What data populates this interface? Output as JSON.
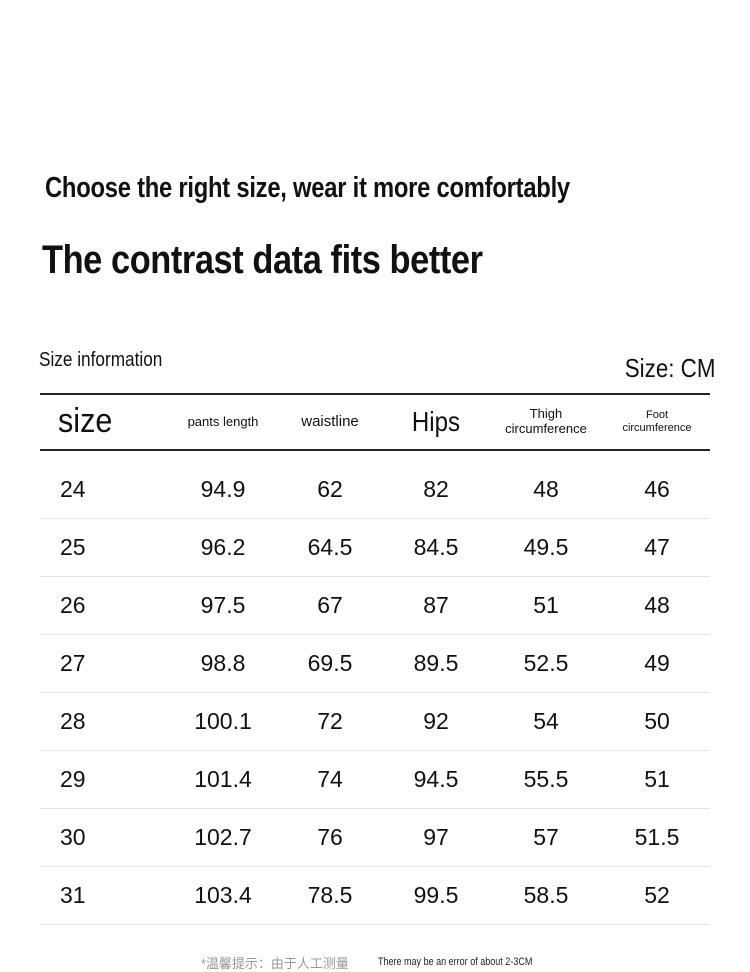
{
  "heading": {
    "line1": "Choose the right size, wear it more comfortably",
    "line2": "The contrast data fits better"
  },
  "table_meta": {
    "label": "Size information",
    "unit": "Size: CM"
  },
  "columns": {
    "size": "size",
    "pants_length": "pants length",
    "waistline": "waistline",
    "hips": "Hips",
    "thigh_line1": "Thigh",
    "thigh_line2": "circumference",
    "foot_line1": "Foot",
    "foot_line2": "circumference"
  },
  "rows": [
    [
      "24",
      "94.9",
      "62",
      "82",
      "48",
      "46"
    ],
    [
      "25",
      "96.2",
      "64.5",
      "84.5",
      "49.5",
      "47"
    ],
    [
      "26",
      "97.5",
      "67",
      "87",
      "51",
      "48"
    ],
    [
      "27",
      "98.8",
      "69.5",
      "89.5",
      "52.5",
      "49"
    ],
    [
      "28",
      "100.1",
      "72",
      "92",
      "54",
      "50"
    ],
    [
      "29",
      "101.4",
      "74",
      "94.5",
      "55.5",
      "51"
    ],
    [
      "30",
      "102.7",
      "76",
      "97",
      "57",
      "51.5"
    ],
    [
      "31",
      "103.4",
      "78.5",
      "99.5",
      "58.5",
      "52"
    ]
  ],
  "footer": {
    "note_cn": "*温馨提示：由于人工测量",
    "note_en": "There may be an error of about 2-3CM"
  }
}
